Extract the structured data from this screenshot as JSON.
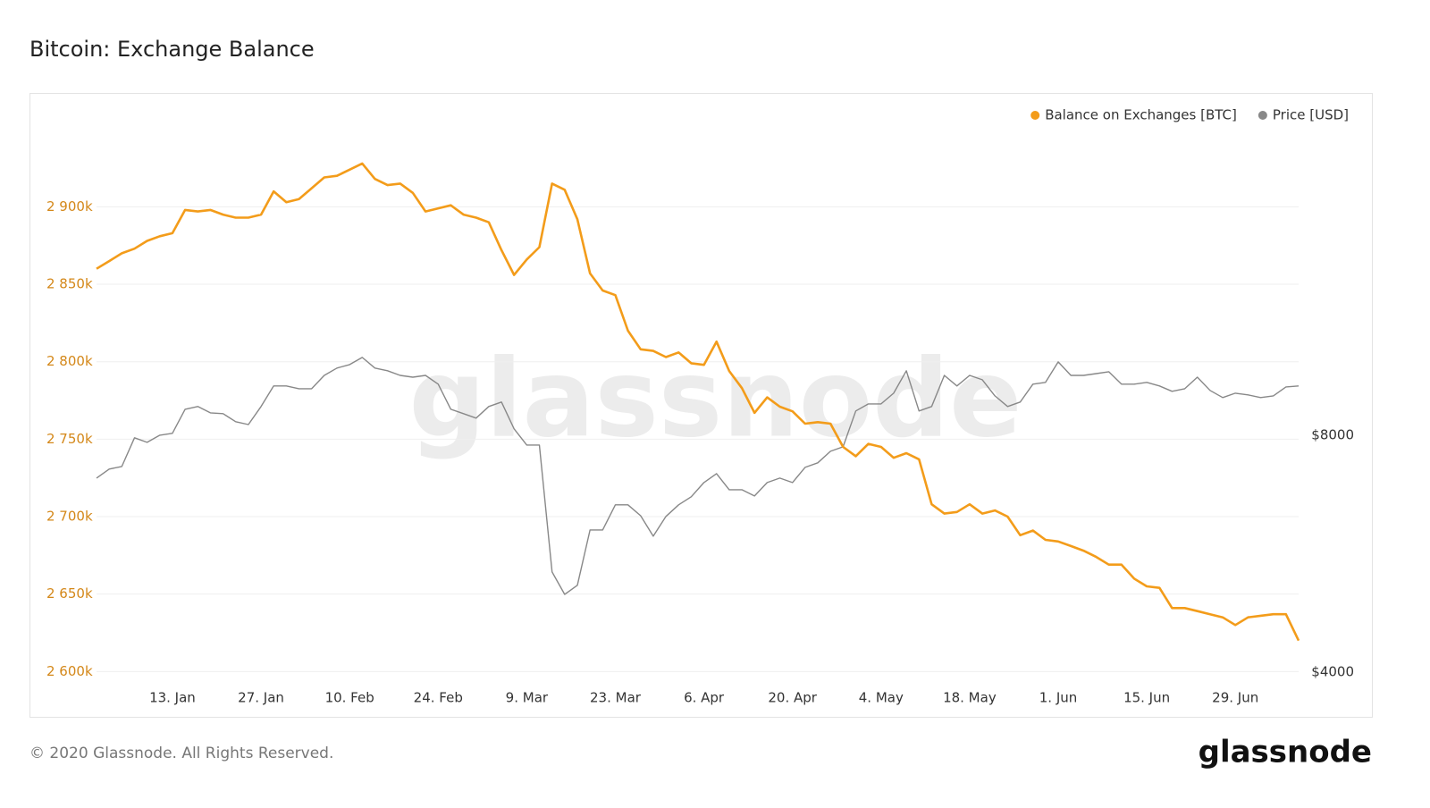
{
  "title": "Bitcoin: Exchange Balance",
  "footer": "© 2020 Glassnode. All Rights Reserved.",
  "logo": "glassnode",
  "chart_data": {
    "type": "line",
    "watermark": "glassnode",
    "categories": [
      null,
      null,
      null,
      null,
      null,
      null,
      "13. Jan",
      null,
      null,
      null,
      null,
      null,
      null,
      "27. Jan",
      null,
      null,
      null,
      null,
      null,
      null,
      "10. Feb",
      null,
      null,
      null,
      null,
      null,
      null,
      "24. Feb",
      null,
      null,
      null,
      null,
      null,
      null,
      "9. Mar",
      null,
      null,
      null,
      null,
      null,
      null,
      "23. Mar",
      null,
      null,
      null,
      null,
      null,
      null,
      "6. Apr",
      null,
      null,
      null,
      null,
      null,
      null,
      "20. Apr",
      null,
      null,
      null,
      null,
      null,
      null,
      "4. May",
      null,
      null,
      null,
      null,
      null,
      null,
      "18. May",
      null,
      null,
      null,
      null,
      null,
      null,
      "1. Jun",
      null,
      null,
      null,
      null,
      null,
      null,
      "15. Jun",
      null,
      null,
      null,
      null,
      null,
      null,
      "29. Jun",
      null,
      null,
      null,
      null,
      null
    ],
    "series": [
      {
        "name": "Balance on Exchanges [BTC]",
        "color": "#f39c1a",
        "axis": "y",
        "values": [
          2860000,
          2865000,
          2870000,
          2873000,
          2878000,
          2881000,
          2883000,
          2898000,
          2897000,
          2898000,
          2895000,
          2893000,
          2893000,
          2895000,
          2910000,
          2903000,
          2905000,
          2912000,
          2919000,
          2920000,
          2924000,
          2928000,
          2918000,
          2914000,
          2915000,
          2909000,
          2897000,
          2899000,
          2901000,
          2895000,
          2893000,
          2890000,
          2872000,
          2856000,
          2866000,
          2874000,
          2915000,
          2911000,
          2892000,
          2857000,
          2846000,
          2843000,
          2820000,
          2808000,
          2807000,
          2803000,
          2806000,
          2799000,
          2798000,
          2813000,
          2794000,
          2783000,
          2767000,
          2777000,
          2771000,
          2768000,
          2760000,
          2761000,
          2760000,
          2745000,
          2739000,
          2747000,
          2745000,
          2738000,
          2741000,
          2737000,
          2708000,
          2702000,
          2703000,
          2708000,
          2702000,
          2704000,
          2700000,
          2688000,
          2691000,
          2685000,
          2684000,
          2681000,
          2678000,
          2674000,
          2669000,
          2669000,
          2660000,
          2655000,
          2654000,
          2641000,
          2641000,
          2639000,
          2637000,
          2635000,
          2630000,
          2635000,
          2636000,
          2637000,
          2637000,
          2620000
        ]
      },
      {
        "name": "Price [USD]",
        "color": "#888888",
        "axis": "y2",
        "values": [
          7056,
          7245,
          7300,
          7940,
          7834,
          8000,
          8044,
          8630,
          8700,
          8540,
          8520,
          8322,
          8253,
          8700,
          9240,
          9240,
          9165,
          9165,
          9530,
          9735,
          9836,
          10044,
          9735,
          9660,
          9530,
          9480,
          9530,
          9287,
          8630,
          8520,
          8410,
          8700,
          8814,
          8150,
          7773,
          7773,
          5362,
          5022,
          5157,
          6063,
          6063,
          6525,
          6525,
          6320,
          5953,
          6307,
          6525,
          6680,
          6964,
          7149,
          6821,
          6821,
          6696,
          6964,
          7056,
          6964,
          7281,
          7378,
          7632,
          7733,
          8587,
          8767,
          8767,
          9045,
          9660,
          8587,
          8700,
          9530,
          9240,
          9530,
          9408,
          8976,
          8700,
          8814,
          9287,
          9336,
          9912,
          9530,
          9530,
          9580,
          9632,
          9287,
          9287,
          9336,
          9240,
          9095,
          9165,
          9480,
          9119,
          8930,
          9045,
          9000,
          8930,
          8976,
          9212,
          9240
        ]
      }
    ],
    "ylim": [
      2595000,
      2951000
    ],
    "yticks": [
      {
        "value": 2600000,
        "label": "2 600k"
      },
      {
        "value": 2650000,
        "label": "2 650k"
      },
      {
        "value": 2700000,
        "label": "2 700k"
      },
      {
        "value": 2750000,
        "label": "2 750k"
      },
      {
        "value": 2800000,
        "label": "2 800k"
      },
      {
        "value": 2850000,
        "label": "2 850k"
      },
      {
        "value": 2900000,
        "label": "2 900k"
      }
    ],
    "y2lim": [
      3917,
      19660
    ],
    "y2ticks": [
      {
        "value": 4000,
        "label": "$4000"
      },
      {
        "value": 8000,
        "label": "$8000"
      }
    ],
    "y2log": true,
    "grid": true,
    "legend": "top-right"
  }
}
